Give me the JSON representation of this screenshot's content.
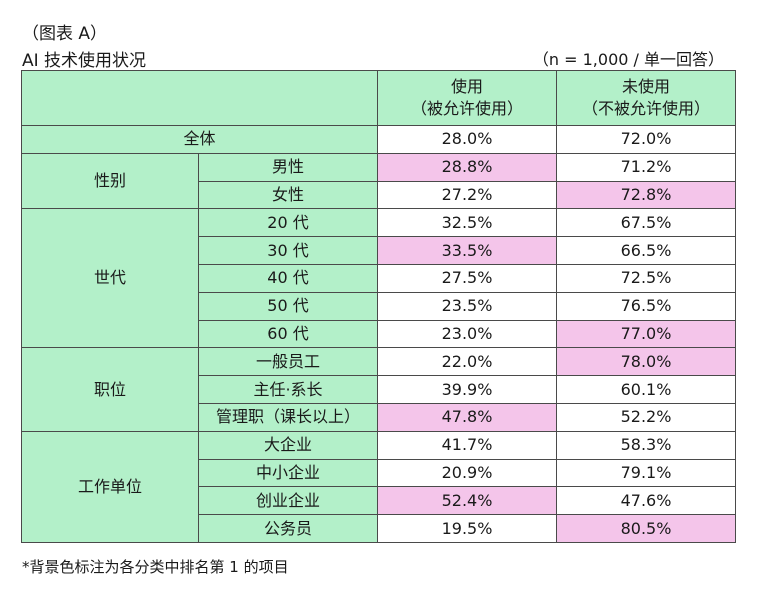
{
  "figure_label": "（图表 A）",
  "title": "AI 技术使用状况",
  "sample_note": "（n = 1,000 / 单一回答）",
  "headers": {
    "used": "使用",
    "used_sub": "（被允许使用）",
    "not_used": "未使用",
    "not_used_sub": "（不被允许使用）"
  },
  "total": {
    "label": "全体",
    "used": "28.0%",
    "not_used": "72.0%"
  },
  "groups": [
    {
      "name": "性别",
      "rows": [
        {
          "label": "男性",
          "used": "28.8%",
          "not_used": "71.2%",
          "highlight": "used"
        },
        {
          "label": "女性",
          "used": "27.2%",
          "not_used": "72.8%",
          "highlight": "not_used"
        }
      ]
    },
    {
      "name": "世代",
      "rows": [
        {
          "label": "20 代",
          "used": "32.5%",
          "not_used": "67.5%",
          "highlight": ""
        },
        {
          "label": "30 代",
          "used": "33.5%",
          "not_used": "66.5%",
          "highlight": "used"
        },
        {
          "label": "40 代",
          "used": "27.5%",
          "not_used": "72.5%",
          "highlight": ""
        },
        {
          "label": "50 代",
          "used": "23.5%",
          "not_used": "76.5%",
          "highlight": ""
        },
        {
          "label": "60 代",
          "used": "23.0%",
          "not_used": "77.0%",
          "highlight": "not_used"
        }
      ]
    },
    {
      "name": "职位",
      "rows": [
        {
          "label": "一般员工",
          "used": "22.0%",
          "not_used": "78.0%",
          "highlight": "not_used"
        },
        {
          "label": "主任·系长",
          "used": "39.9%",
          "not_used": "60.1%",
          "highlight": ""
        },
        {
          "label": "管理职（课长以上）",
          "used": "47.8%",
          "not_used": "52.2%",
          "highlight": "used"
        }
      ]
    },
    {
      "name": "工作单位",
      "rows": [
        {
          "label": "大企业",
          "used": "41.7%",
          "not_used": "58.3%",
          "highlight": ""
        },
        {
          "label": "中小企业",
          "used": "20.9%",
          "not_used": "79.1%",
          "highlight": ""
        },
        {
          "label": "创业企业",
          "used": "52.4%",
          "not_used": "47.6%",
          "highlight": "used"
        },
        {
          "label": "公务员",
          "used": "19.5%",
          "not_used": "80.5%",
          "highlight": "not_used"
        }
      ]
    }
  ],
  "footnote": "*背景色标注为各分类中排名第 1 的项目",
  "colors": {
    "header_green": "#b3f0c9",
    "highlight_pink": "#f4c5ea"
  }
}
